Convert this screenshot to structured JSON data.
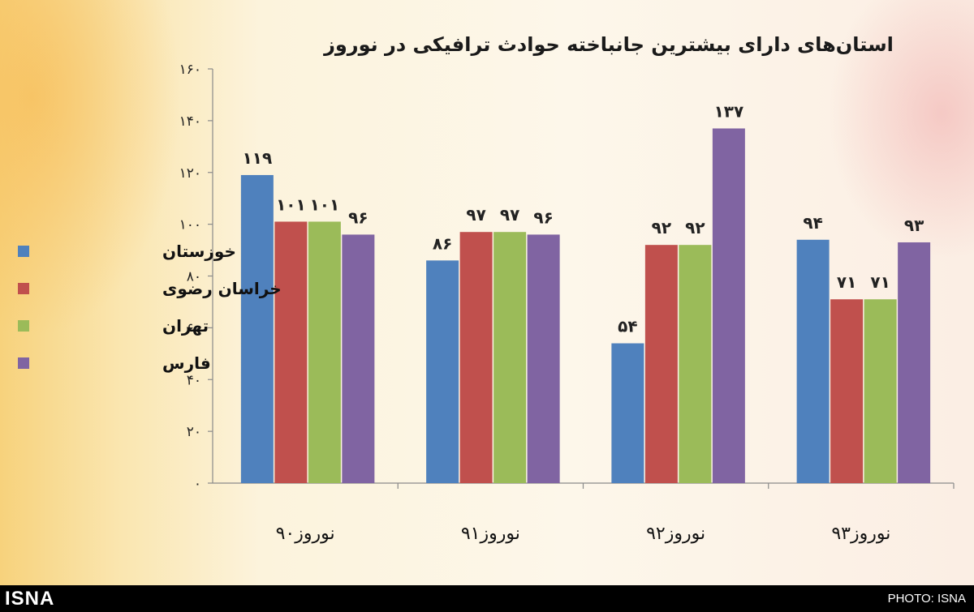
{
  "chart_data": {
    "type": "bar",
    "title": "استان‌های دارای بیشترین جانباخته حوادث ترافیکی در نوروز",
    "categories": [
      "نوروز۹۰",
      "نوروز۹۱",
      "نوروز۹۲",
      "نوروز۹۳"
    ],
    "series": [
      {
        "name": "خوزستان",
        "values": [
          119,
          86,
          54,
          94
        ],
        "labels": [
          "۱۱۹",
          "۸۶",
          "۵۴",
          "۹۴"
        ],
        "color": "#4f81bd"
      },
      {
        "name": "خراسان رضوی",
        "values": [
          101,
          97,
          92,
          71
        ],
        "labels": [
          "۱۰۱",
          "۹۷",
          "۹۲",
          "۷۱"
        ],
        "color": "#c0504d"
      },
      {
        "name": "تهران",
        "values": [
          101,
          97,
          92,
          71
        ],
        "labels": [
          "۱۰۱",
          "۹۷",
          "۹۲",
          "۷۱"
        ],
        "color": "#9bbb59"
      },
      {
        "name": "فارس",
        "values": [
          96,
          96,
          137,
          93
        ],
        "labels": [
          "۹۶",
          "۹۶",
          "۱۳۷",
          "۹۳"
        ],
        "color": "#8064a2"
      }
    ],
    "yticks": [
      0,
      20,
      40,
      60,
      80,
      100,
      120,
      140,
      160
    ],
    "ytick_labels": [
      "۰",
      "۲۰",
      "۴۰",
      "۶۰",
      "۸۰",
      "۱۰۰",
      "۱۲۰",
      "۱۴۰",
      "۱۶۰"
    ],
    "ylim": [
      0,
      160
    ],
    "grid": false,
    "legend_position": "left"
  },
  "footer": {
    "logo": "ISNA",
    "credit": "PHOTO: ISNA"
  }
}
